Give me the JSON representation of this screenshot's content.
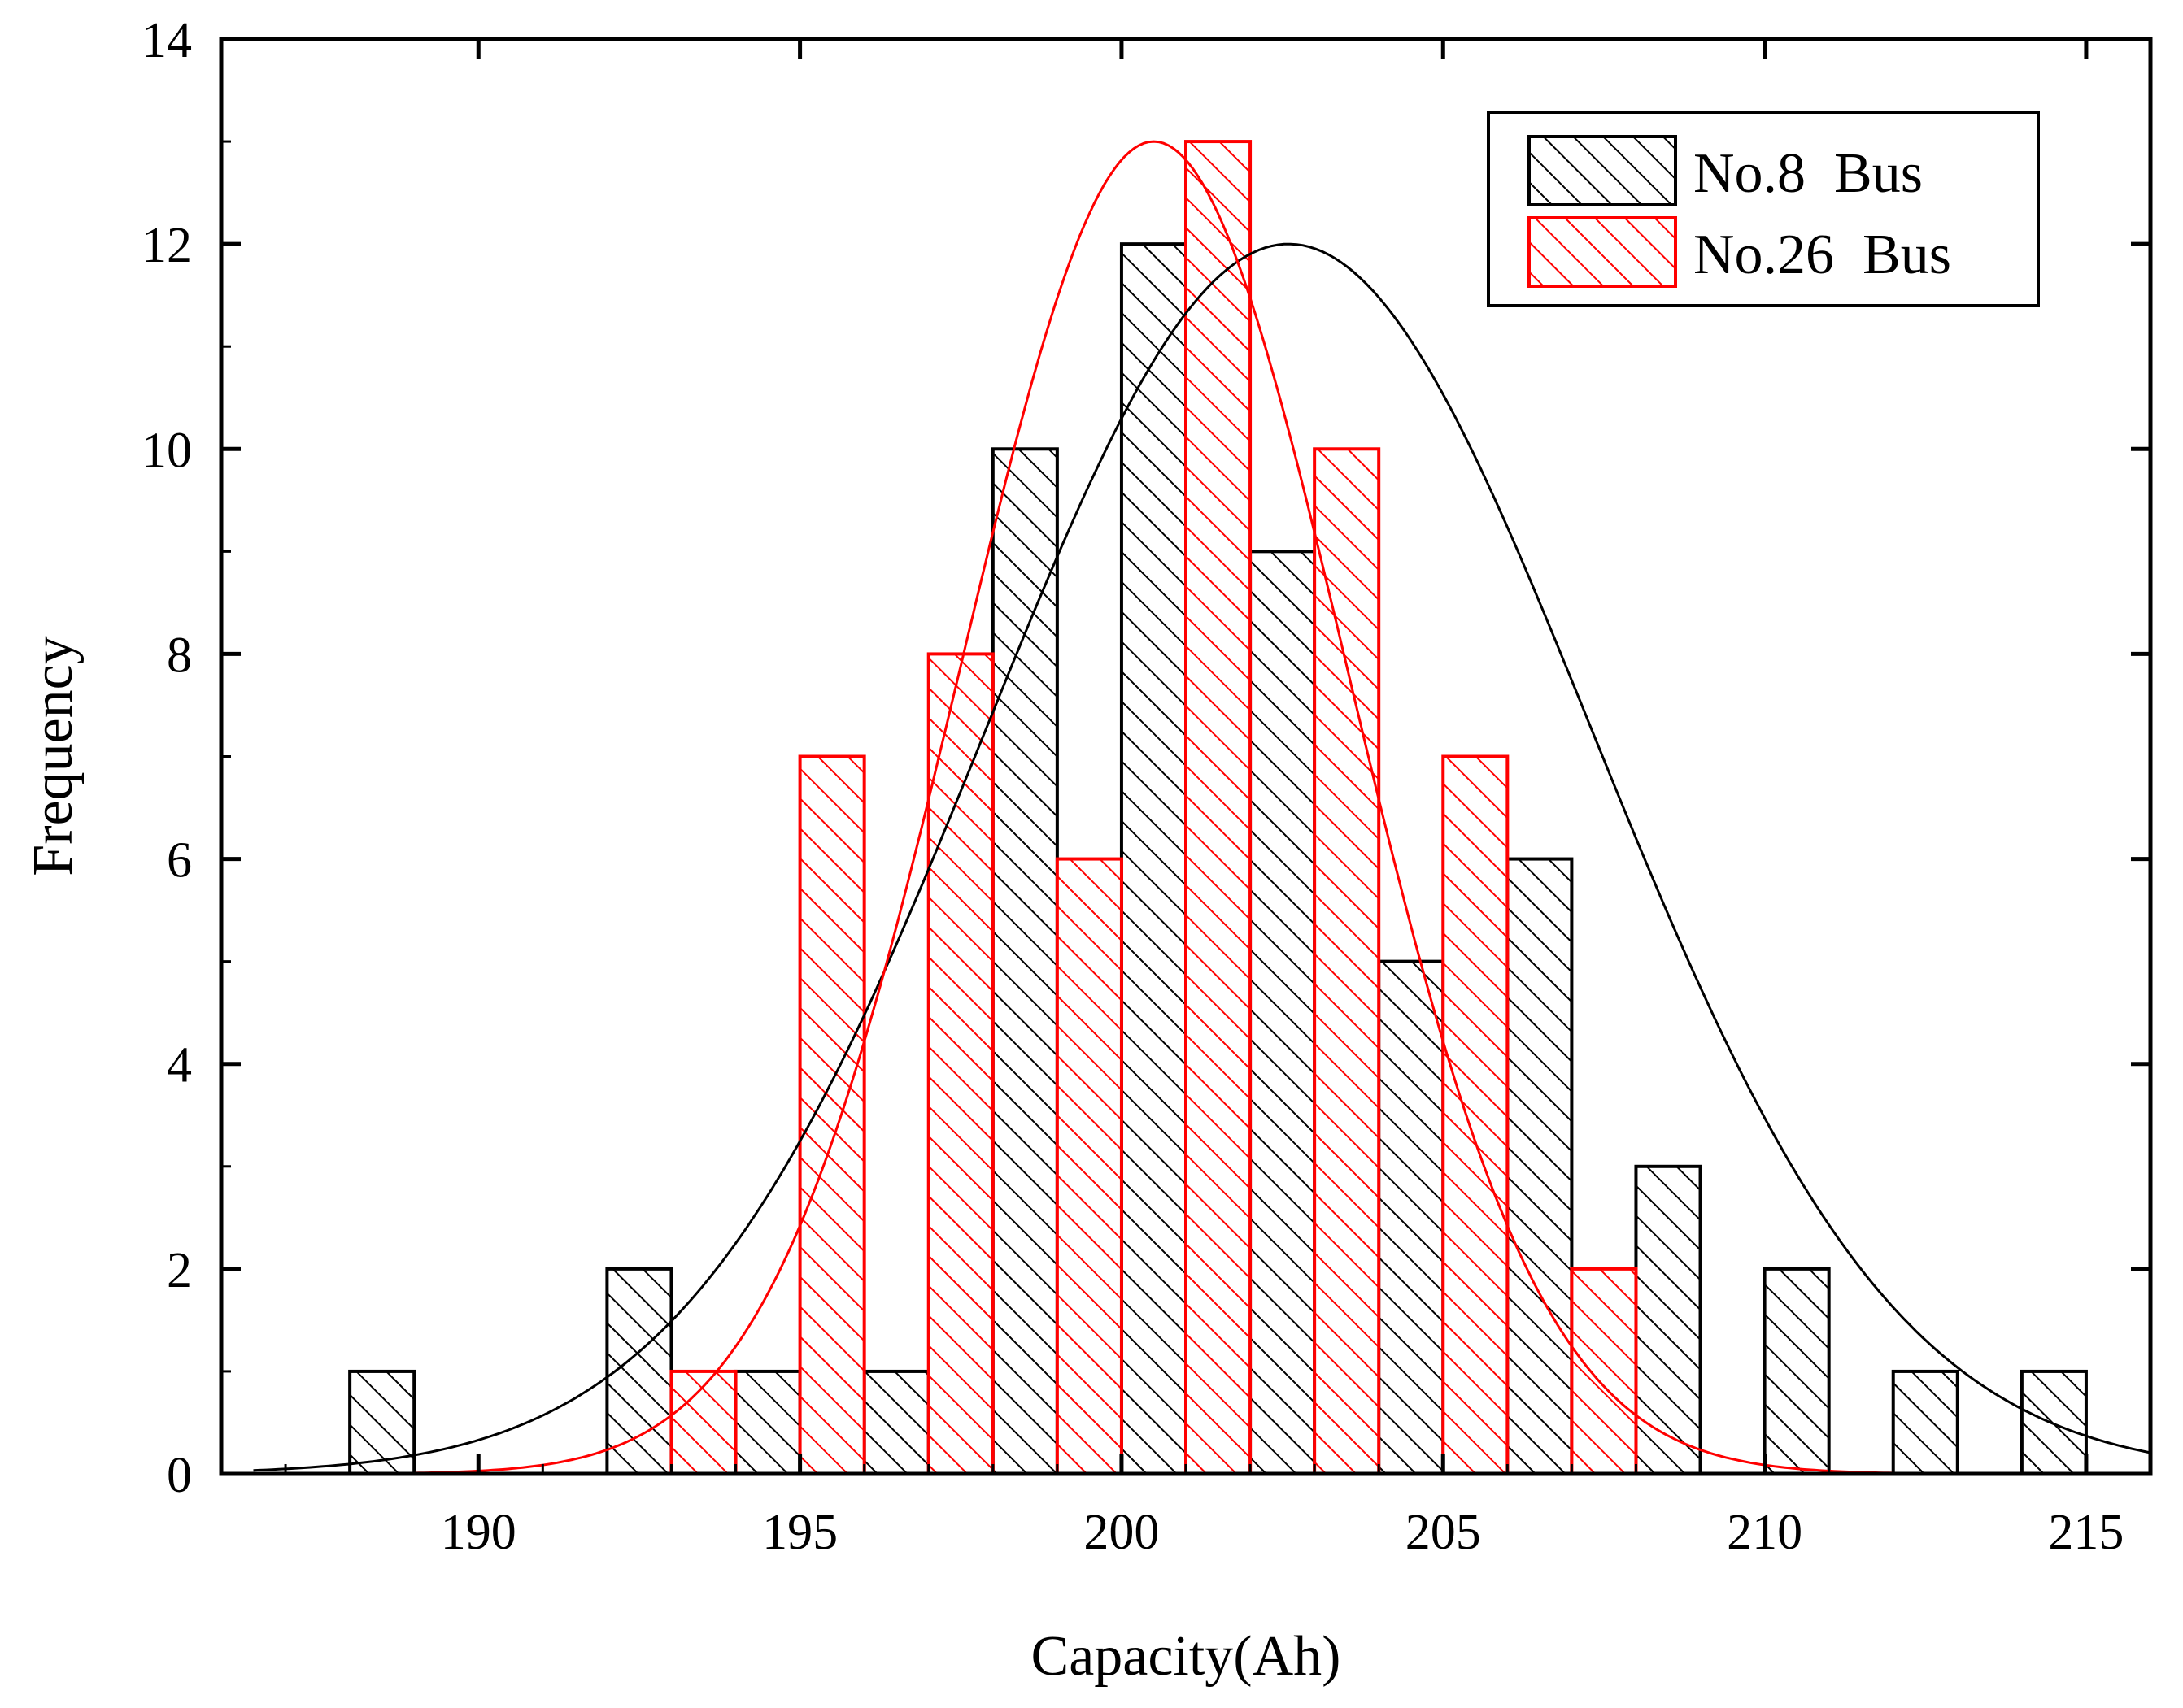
{
  "chart_data": {
    "type": "bar",
    "title": "",
    "xlabel": "Capacity(Ah)",
    "ylabel": "Frequency",
    "xlim": [
      186,
      216
    ],
    "ylim": [
      0,
      14
    ],
    "xticks": [
      190,
      195,
      200,
      205,
      210,
      215
    ],
    "yticks": [
      0,
      2,
      4,
      6,
      8,
      10,
      12,
      14
    ],
    "grid": false,
    "legend_position": "top-right",
    "bin_width": 1,
    "series": [
      {
        "name": "No.8  Bus",
        "color": "#000000",
        "hatch": "diagonal-back",
        "bins": [
          {
            "start": 188,
            "value": 1
          },
          {
            "start": 192,
            "value": 2
          },
          {
            "start": 194,
            "value": 1
          },
          {
            "start": 196,
            "value": 1
          },
          {
            "start": 198,
            "value": 10
          },
          {
            "start": 200,
            "value": 12
          },
          {
            "start": 202,
            "value": 9
          },
          {
            "start": 204,
            "value": 5
          },
          {
            "start": 206,
            "value": 6
          },
          {
            "start": 208,
            "value": 3
          },
          {
            "start": 210,
            "value": 2
          },
          {
            "start": 212,
            "value": 1
          },
          {
            "start": 214,
            "value": 1
          }
        ],
        "fit": {
          "type": "normal",
          "peak": 12,
          "mean": 202.6,
          "sd": 4.7,
          "x_range": [
            186.5,
            216
          ]
        }
      },
      {
        "name": "No.26  Bus",
        "color": "#ff0000",
        "hatch": "diagonal-back",
        "bins": [
          {
            "start": 193,
            "value": 1
          },
          {
            "start": 195,
            "value": 7
          },
          {
            "start": 197,
            "value": 8
          },
          {
            "start": 199,
            "value": 6
          },
          {
            "start": 201,
            "value": 13
          },
          {
            "start": 203,
            "value": 10
          },
          {
            "start": 205,
            "value": 7
          },
          {
            "start": 207,
            "value": 2
          }
        ],
        "fit": {
          "type": "normal",
          "peak": 13,
          "mean": 200.5,
          "sd": 3.0,
          "x_range": [
            189,
            212
          ]
        }
      }
    ]
  }
}
